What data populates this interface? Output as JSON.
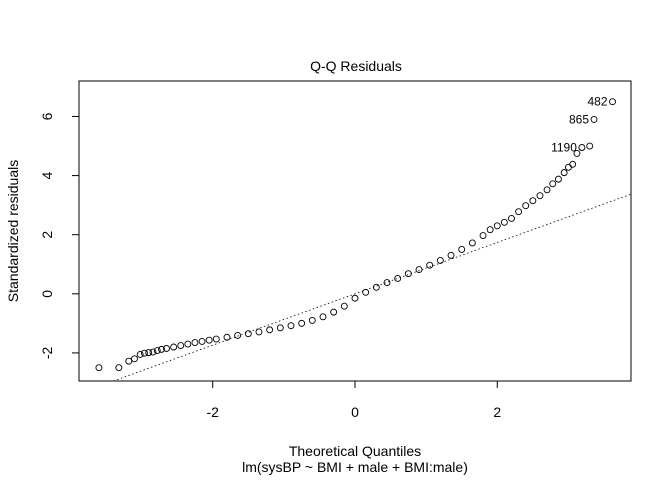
{
  "chart_data": {
    "type": "scatter",
    "title": "Q-Q Residuals",
    "xlabel": "Theoretical Quantiles",
    "xlabel_sub": "lm(sysBP ~ BMI + male + BMI:male)",
    "ylabel": "Standardized residuals",
    "xlim": [
      -3.88,
      3.88
    ],
    "ylim": [
      -2.95,
      7.2
    ],
    "x_ticks": [
      -2,
      0,
      2
    ],
    "y_ticks": [
      -2,
      0,
      2,
      4,
      6
    ],
    "x_tick_labels": [
      "-2",
      "0",
      "2"
    ],
    "y_tick_labels": [
      "-2",
      "0",
      "2",
      "4",
      "6"
    ],
    "grid": false,
    "reference_line": {
      "style": "dotted",
      "x1": -3.88,
      "y1": -3.37,
      "x2": 3.88,
      "y2": 3.37
    },
    "points": [
      [
        -3.6,
        -2.5
      ],
      [
        -3.32,
        -2.5
      ],
      [
        -3.18,
        -2.28
      ],
      [
        -3.1,
        -2.2
      ],
      [
        -3.02,
        -2.05
      ],
      [
        -2.96,
        -2.01
      ],
      [
        -2.9,
        -1.99
      ],
      [
        -2.84,
        -1.97
      ],
      [
        -2.78,
        -1.92
      ],
      [
        -2.72,
        -1.88
      ],
      [
        -2.65,
        -1.85
      ],
      [
        -2.55,
        -1.8
      ],
      [
        -2.45,
        -1.75
      ],
      [
        -2.35,
        -1.7
      ],
      [
        -2.25,
        -1.65
      ],
      [
        -2.15,
        -1.61
      ],
      [
        -2.05,
        -1.57
      ],
      [
        -1.95,
        -1.53
      ],
      [
        -1.8,
        -1.47
      ],
      [
        -1.65,
        -1.41
      ],
      [
        -1.5,
        -1.35
      ],
      [
        -1.35,
        -1.29
      ],
      [
        -1.2,
        -1.22
      ],
      [
        -1.05,
        -1.15
      ],
      [
        -0.9,
        -1.08
      ],
      [
        -0.75,
        -1.0
      ],
      [
        -0.6,
        -0.9
      ],
      [
        -0.45,
        -0.78
      ],
      [
        -0.3,
        -0.62
      ],
      [
        -0.15,
        -0.42
      ],
      [
        0.0,
        -0.15
      ],
      [
        0.15,
        0.05
      ],
      [
        0.3,
        0.22
      ],
      [
        0.45,
        0.38
      ],
      [
        0.6,
        0.52
      ],
      [
        0.75,
        0.68
      ],
      [
        0.9,
        0.82
      ],
      [
        1.05,
        0.97
      ],
      [
        1.2,
        1.13
      ],
      [
        1.35,
        1.3
      ],
      [
        1.5,
        1.5
      ],
      [
        1.65,
        1.72
      ],
      [
        1.8,
        1.97
      ],
      [
        1.9,
        2.17
      ],
      [
        2.0,
        2.3
      ],
      [
        2.1,
        2.42
      ],
      [
        2.2,
        2.55
      ],
      [
        2.3,
        2.78
      ],
      [
        2.4,
        2.98
      ],
      [
        2.5,
        3.15
      ],
      [
        2.6,
        3.32
      ],
      [
        2.7,
        3.52
      ],
      [
        2.78,
        3.72
      ],
      [
        2.86,
        3.88
      ],
      [
        2.94,
        4.1
      ],
      [
        3.0,
        4.28
      ],
      [
        3.06,
        4.38
      ],
      [
        3.12,
        4.75
      ],
      [
        3.19,
        4.95
      ],
      [
        3.3,
        5.0
      ],
      [
        3.36,
        5.9
      ],
      [
        3.62,
        6.5
      ]
    ],
    "point_labels": [
      {
        "text": "482",
        "x": 3.62,
        "y": 6.5
      },
      {
        "text": "865",
        "x": 3.36,
        "y": 5.9
      },
      {
        "text": "1190",
        "x": 3.19,
        "y": 4.95
      }
    ]
  }
}
